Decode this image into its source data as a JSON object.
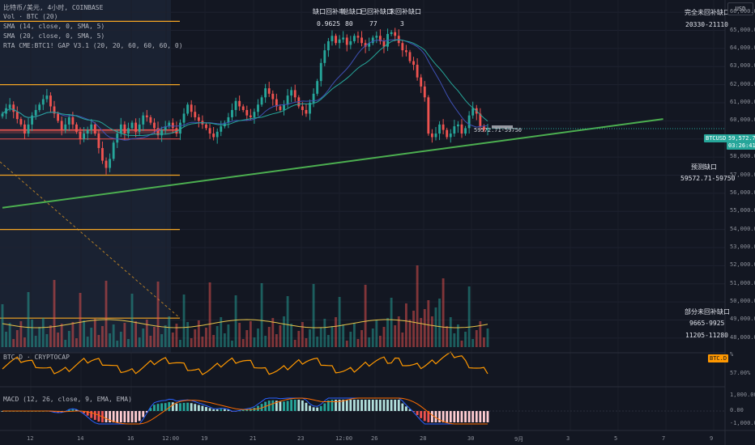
{
  "legend": [
    "比特币/美元, 4小时, COINBASE",
    "Vol · BTC (20)",
    "SMA (14, close, 0, SMA, 5)",
    "SMA (20, close, 0, SMA, 5)",
    "RTA CME:BTC1! GAP V3.1 (20, 20, 60, 60, 60, 0)"
  ],
  "gap_stats": {
    "headers": [
      "缺口回补率",
      "总缺口",
      "已回补缺口",
      "未回补缺口"
    ],
    "values": [
      "0.9625",
      "80",
      "77",
      "3"
    ]
  },
  "right_panel": {
    "complete_title": "完全未回补缺口",
    "complete_value": "20330-21110",
    "forecast_title": "预测缺口",
    "forecast_value": "59572.71-59750",
    "partial_title": "部分未回补缺口",
    "partial_values": [
      "9665-9925",
      "11205-11280"
    ]
  },
  "chart_gap_label": "59572.71-59750",
  "currency_button": "USD",
  "price_tag": {
    "symbol": "BTCUSD",
    "price": "59,572.71",
    "countdown": "03:26:41"
  },
  "y_ticks": [
    "66,000.00",
    "65,000.00",
    "64,000.00",
    "63,000.00",
    "62,000.00",
    "61,000.00",
    "60,000.00",
    "59,000.00",
    "58,000.00",
    "57,000.00",
    "56,000.00",
    "55,000.00",
    "54,000.00",
    "53,000.00",
    "52,000.00",
    "51,000.00",
    "50,000.00",
    "49,000.00",
    "48,000.00"
  ],
  "btcd": {
    "label": "BTC.D · CRYPTOCAP",
    "tag": "BTC.D",
    "unit": "%",
    "tick": "57.00%"
  },
  "macd": {
    "label": "MACD (12, 26, close, 9, EMA, EMA)",
    "ticks": [
      "1,000.00",
      "0.00",
      "-1,000.00"
    ]
  },
  "x_ticks": [
    "12",
    "14",
    "16",
    "12:00",
    "19",
    "21",
    "23",
    "12:00",
    "26",
    "28",
    "30",
    "9月",
    "3",
    "5",
    "7",
    "9"
  ],
  "colors": {
    "up": "#26a69a",
    "down": "#ef5350",
    "trend": "#4caf50",
    "gap_line": "#f5a623",
    "sma14": "#3f51b5",
    "sma20": "#26a69a",
    "btcd": "#ff9800"
  },
  "chart_data": {
    "type": "candlestick",
    "timeframe": "4小时",
    "ylim": [
      47500,
      66500
    ],
    "closes": [
      60400,
      60700,
      60900,
      60500,
      60100,
      59800,
      59300,
      59800,
      60300,
      60600,
      60900,
      61200,
      61400,
      60800,
      60400,
      60000,
      59500,
      59800,
      60200,
      59800,
      59400,
      59000,
      59300,
      59500,
      59800,
      59300,
      58500,
      57800,
      57400,
      57900,
      58800,
      59300,
      59800,
      59300,
      59600,
      59900,
      59400,
      59800,
      60300,
      60200,
      59900,
      59600,
      59200,
      59500,
      59700,
      59900,
      59600,
      59300,
      59900,
      60400,
      60900,
      60500,
      60200,
      60000,
      59800,
      59600,
      59300,
      59100,
      59400,
      59700,
      59900,
      60200,
      60600,
      61100,
      60800,
      60600,
      60300,
      60200,
      60500,
      60900,
      61300,
      61800,
      61500,
      61200,
      60800,
      60600,
      60900,
      61400,
      61700,
      61300,
      60800,
      60600,
      60400,
      61000,
      61500,
      62200,
      63200,
      63900,
      64400,
      64700,
      64300,
      64500,
      64600,
      64200,
      64400,
      64700,
      64600,
      64300,
      64100,
      64300,
      64600,
      64700,
      64400,
      64100,
      64800,
      64900,
      64700,
      64300,
      63900,
      63800,
      63300,
      63100,
      62400,
      61900,
      61300,
      59300,
      59100,
      59300,
      59800,
      59500,
      59100,
      59300,
      59700,
      59800,
      59300,
      59600,
      60300,
      60700,
      60400,
      59700,
      59500,
      59600
    ],
    "trendline": {
      "start": [
        0,
        55200
      ],
      "end": [
        174,
        60100
      ]
    },
    "gap_levels": [
      65500,
      62000,
      59500,
      57000,
      54000,
      49100
    ],
    "forecast_gap": [
      59572.71,
      59750
    ]
  }
}
